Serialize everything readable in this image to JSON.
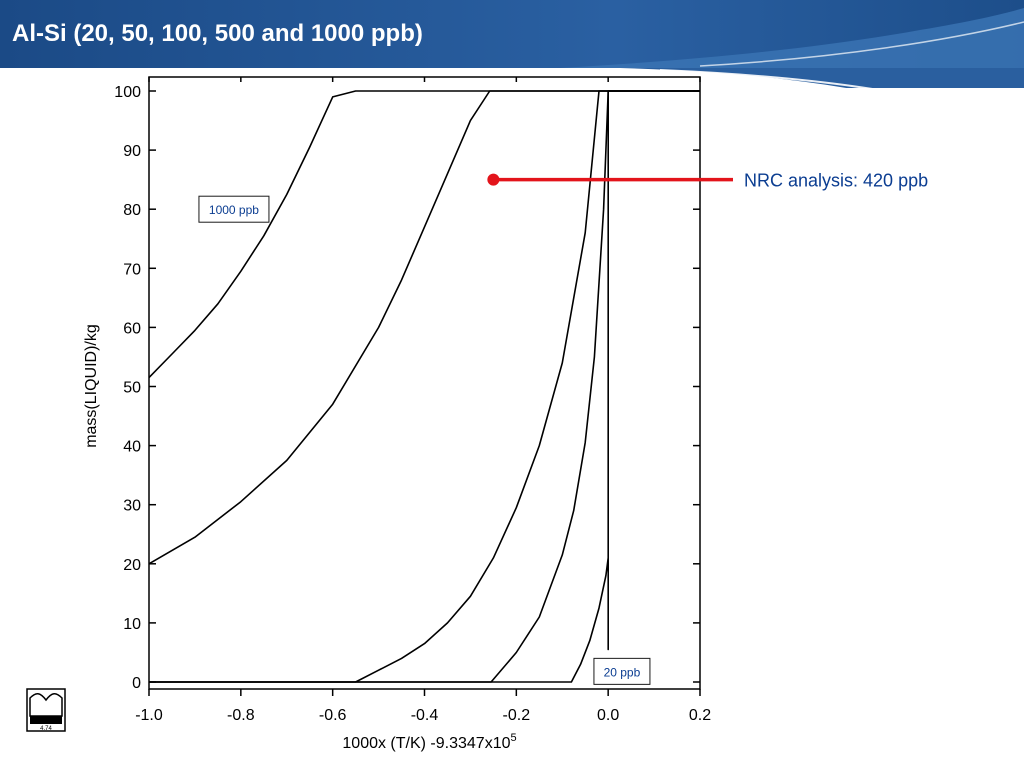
{
  "slide": {
    "title": "Al-Si (20, 50, 100, 500 and 1000 ppb)"
  },
  "colors": {
    "banner_dark": "#1d4e8a",
    "banner_light": "#3a73b3",
    "curve": "#000000",
    "marker": "#e3141b",
    "label_text": "#0b3d91"
  },
  "logo": {
    "icon": "factsage-logo-icon",
    "text": "4.74"
  },
  "chart_data": {
    "type": "line",
    "xlabel": "1000x (T/K) -9.3347x10",
    "xlabel_superscript": "5",
    "ylabel": "mass(LIQUID)/kg",
    "xlim": [
      -1.0,
      0.2
    ],
    "ylim": [
      0,
      100
    ],
    "x_ticks": [
      "-1.0",
      "-0.8",
      "-0.6",
      "-0.4",
      "-0.2",
      "0.0",
      "0.2"
    ],
    "y_ticks": [
      "0",
      "10",
      "20",
      "30",
      "40",
      "50",
      "60",
      "70",
      "80",
      "90",
      "100"
    ],
    "series": [
      {
        "x": [
          -1.0,
          -0.95,
          -0.9,
          -0.85,
          -0.8,
          -0.75,
          -0.7,
          -0.65,
          -0.6,
          -0.55,
          0.2
        ],
        "y": [
          51.5,
          55.5,
          59.5,
          64.0,
          69.5,
          75.5,
          82.5,
          90.5,
          99.0,
          100,
          100
        ]
      },
      {
        "x": [
          -1.0,
          -0.9,
          -0.8,
          -0.7,
          -0.6,
          -0.5,
          -0.45,
          -0.4,
          -0.35,
          -0.3,
          -0.258,
          0.2
        ],
        "y": [
          20,
          24.5,
          30.5,
          37.5,
          47.0,
          60.0,
          68.0,
          77.0,
          86.0,
          95.0,
          100,
          100
        ]
      },
      {
        "x": [
          -1.0,
          -0.55,
          -0.5,
          -0.45,
          -0.4,
          -0.35,
          -0.3,
          -0.25,
          -0.2,
          -0.15,
          -0.1,
          -0.05,
          -0.025,
          -0.02,
          0.2
        ],
        "y": [
          0,
          0,
          2.0,
          4.0,
          6.5,
          10.0,
          14.5,
          21.0,
          29.5,
          40.0,
          54.0,
          76.0,
          96.0,
          100,
          100
        ]
      },
      {
        "x": [
          -1.0,
          -0.255,
          -0.2,
          -0.15,
          -0.1,
          -0.075,
          -0.05,
          -0.03,
          -0.01,
          0.0,
          0.2
        ],
        "y": [
          0,
          0,
          5.0,
          11.0,
          21.5,
          29.0,
          40.5,
          55.0,
          80.0,
          100,
          100
        ]
      },
      {
        "x": [
          -1.0,
          -0.08,
          -0.06,
          -0.04,
          -0.02,
          -0.005,
          0.0,
          0.0,
          0.0,
          0.2
        ],
        "y": [
          0,
          0,
          3.0,
          7.0,
          12.5,
          18.0,
          21.0,
          5.5,
          100,
          100
        ]
      }
    ],
    "labels": [
      {
        "text": "1000 ppb",
        "x": -0.815,
        "y": 80
      },
      {
        "text": "20 ppb",
        "x": 0.03,
        "y": 1.8
      }
    ],
    "annotation": {
      "text": "NRC analysis: 420 ppb",
      "marker": {
        "x": -0.25,
        "y": 85
      }
    }
  }
}
